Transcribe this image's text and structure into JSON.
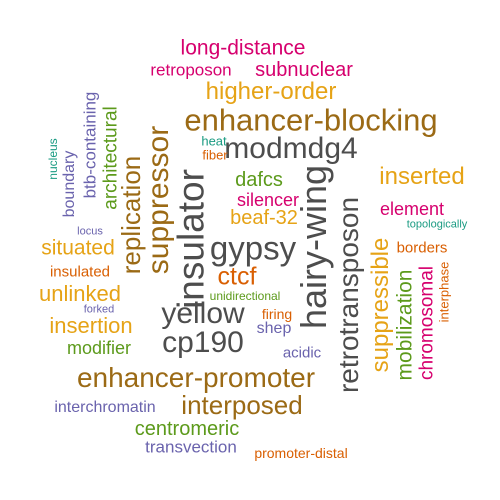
{
  "colors": {
    "background": "#ffffff",
    "magenta": "#d6006e",
    "gold": "#e6a316",
    "brown": "#9b6a15",
    "dark": "#4d4d4d",
    "green": "#5c9a1b",
    "purple": "#6a63ad",
    "teal": "#1a9b82",
    "orange": "#d95f02"
  },
  "words": [
    {
      "text": "long-distance",
      "color": "magenta"
    },
    {
      "text": "retroposon",
      "color": "magenta"
    },
    {
      "text": "subnuclear",
      "color": "magenta"
    },
    {
      "text": "higher-order",
      "color": "gold"
    },
    {
      "text": "enhancer-blocking",
      "color": "brown"
    },
    {
      "text": "modmdg4",
      "color": "dark"
    },
    {
      "text": "heat",
      "color": "teal"
    },
    {
      "text": "fiber",
      "color": "orange"
    },
    {
      "text": "inserted",
      "color": "gold"
    },
    {
      "text": "dafcs",
      "color": "green"
    },
    {
      "text": "silencer",
      "color": "magenta"
    },
    {
      "text": "beaf-32",
      "color": "gold"
    },
    {
      "text": "element",
      "color": "magenta"
    },
    {
      "text": "topologically",
      "color": "teal"
    },
    {
      "text": "borders",
      "color": "orange"
    },
    {
      "text": "gypsy",
      "color": "dark"
    },
    {
      "text": "ctcf",
      "color": "orange"
    },
    {
      "text": "situated",
      "color": "gold"
    },
    {
      "text": "insulated",
      "color": "orange"
    },
    {
      "text": "unlinked",
      "color": "gold"
    },
    {
      "text": "unidirectional",
      "color": "green"
    },
    {
      "text": "forked",
      "color": "purple"
    },
    {
      "text": "yellow",
      "color": "dark"
    },
    {
      "text": "firing",
      "color": "orange"
    },
    {
      "text": "insertion",
      "color": "gold"
    },
    {
      "text": "shep",
      "color": "purple"
    },
    {
      "text": "modifier",
      "color": "green"
    },
    {
      "text": "cp190",
      "color": "dark"
    },
    {
      "text": "acidic",
      "color": "purple"
    },
    {
      "text": "enhancer-promoter",
      "color": "brown"
    },
    {
      "text": "interposed",
      "color": "brown"
    },
    {
      "text": "interchromatin",
      "color": "purple"
    },
    {
      "text": "centromeric",
      "color": "green"
    },
    {
      "text": "transvection",
      "color": "purple"
    },
    {
      "text": "promoter-distal",
      "color": "orange"
    },
    {
      "text": "locus",
      "color": "purple"
    },
    {
      "text": "nucleus",
      "color": "teal"
    },
    {
      "text": "boundary",
      "color": "purple"
    },
    {
      "text": "btb-containing",
      "color": "purple"
    },
    {
      "text": "architectural",
      "color": "green"
    },
    {
      "text": "replication",
      "color": "brown"
    },
    {
      "text": "suppressor",
      "color": "brown"
    },
    {
      "text": "insulator",
      "color": "dark"
    },
    {
      "text": "hairy-wing",
      "color": "dark"
    },
    {
      "text": "retrotransposon",
      "color": "dark"
    },
    {
      "text": "suppressible",
      "color": "gold"
    },
    {
      "text": "mobilization",
      "color": "green"
    },
    {
      "text": "chromosomal",
      "color": "magenta"
    },
    {
      "text": "interphase",
      "color": "orange"
    }
  ]
}
